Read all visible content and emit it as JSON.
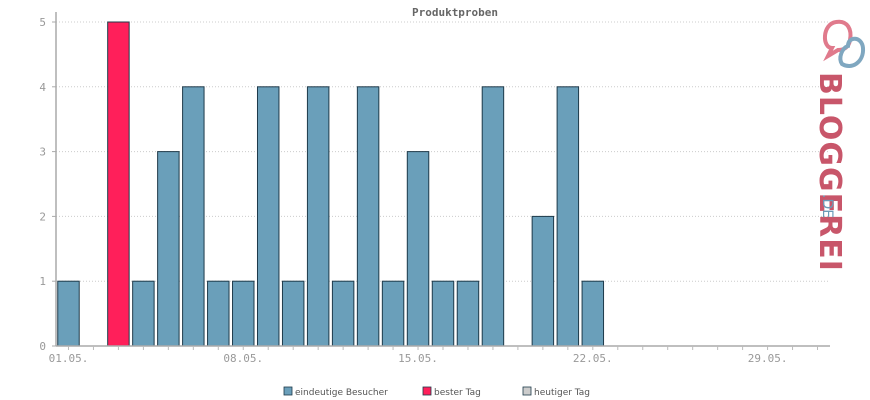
{
  "chart_data": {
    "type": "bar",
    "title": "Produktproben",
    "categories": [
      "01.05.",
      "02.05.",
      "03.05.",
      "04.05.",
      "05.05.",
      "06.05.",
      "07.05.",
      "08.05.",
      "09.05.",
      "10.05.",
      "11.05.",
      "12.05.",
      "13.05.",
      "14.05.",
      "15.05.",
      "16.05.",
      "17.05.",
      "18.05.",
      "19.05.",
      "20.05.",
      "21.05.",
      "22.05.",
      "23.05.",
      "24.05.",
      "25.05.",
      "26.05.",
      "27.05.",
      "28.05.",
      "29.05.",
      "30.05.",
      "31.05."
    ],
    "values": [
      1,
      0,
      5,
      1,
      3,
      4,
      1,
      1,
      4,
      1,
      4,
      1,
      4,
      1,
      3,
      1,
      1,
      4,
      0,
      2,
      4,
      1,
      0,
      0,
      0,
      0,
      0,
      0,
      0,
      0,
      0
    ],
    "best_day_index": 2,
    "x_tick_labels": [
      "01.05.",
      "08.05.",
      "15.05.",
      "22.05.",
      "29.05."
    ],
    "y_ticks": [
      "0",
      "1",
      "2",
      "3",
      "4",
      "5"
    ],
    "ylim": [
      0,
      5
    ],
    "grid": true,
    "legend_position": "bottom-center",
    "legend": [
      {
        "label": "eindeutige Besucher",
        "color": "#6a9fba"
      },
      {
        "label": "bester Tag",
        "color": "#ff1f5a"
      },
      {
        "label": "heutiger Tag",
        "color": "#cccccc"
      }
    ],
    "colors": {
      "bar": "#6a9fba",
      "best": "#ff1f5a",
      "stroke": "#1e3a4a"
    }
  },
  "brand": {
    "name": "BLOGGEREI",
    "suffix": ".DE"
  }
}
